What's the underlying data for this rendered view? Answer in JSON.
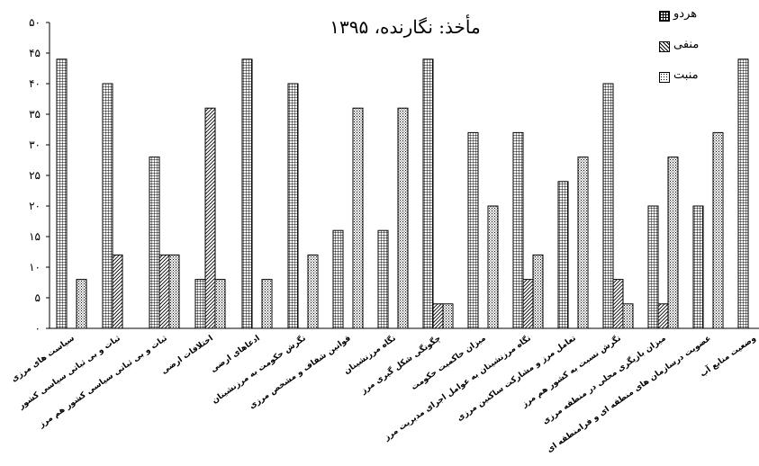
{
  "chart_data": {
    "type": "bar",
    "title": "مأخذ: نگارنده، ۱۳۹۵",
    "xlabel": "",
    "ylabel": "",
    "ylim": [
      0,
      50
    ],
    "yticks": [
      0,
      5,
      10,
      15,
      20,
      25,
      30,
      35,
      40,
      45,
      50
    ],
    "ytick_labels": [
      "۰",
      "۵",
      "۱۰",
      "۱۵",
      "۲۰",
      "۲۵",
      "۳۰",
      "۳۵",
      "۴۰",
      "۴۵",
      "۵۰"
    ],
    "grid": false,
    "legend_position": "top-right",
    "categories": [
      "سیاست های مرزی",
      "ثبات و بی ثباتی سیاسی کشور",
      "ثبات و بی ثباتی سیاسی کشور هم مرز",
      "اختلافات ارضی",
      "ادعاهای ارضی",
      "نگرش حکومت به مرزنشینان",
      "قوانین شفاف و مشخص مرزی",
      "نگاه مرزنشینان",
      "چگونگی شکل گیری مرز",
      "میزان حاکمیت حکومت",
      "نگاه مرزنشینان به عوامل اجرای مدیریت مرز",
      "تعامل مرز و مشارکت ساکنین مرزی",
      "نگرش نسبت به کشور هم مرز",
      "میزان بازیگری محلی در منطقه مرزی",
      "عضویت درسازمان های منطقه ای و فرامنطقه ای",
      "وضعیت منابع آب"
    ],
    "series": [
      {
        "name": "هردو",
        "pattern": "grid",
        "values": [
          44,
          40,
          28,
          8,
          44,
          40,
          16,
          16,
          44,
          32,
          32,
          24,
          40,
          20,
          20,
          44
        ]
      },
      {
        "name": "منفی",
        "pattern": "diagonal",
        "values": [
          0,
          12,
          12,
          36,
          0,
          0,
          0,
          0,
          4,
          0,
          8,
          0,
          8,
          4,
          0,
          0
        ]
      },
      {
        "name": "منبت",
        "pattern": "dots",
        "values": [
          8,
          0,
          12,
          8,
          8,
          12,
          36,
          36,
          4,
          20,
          12,
          28,
          4,
          28,
          32,
          0
        ]
      }
    ]
  }
}
